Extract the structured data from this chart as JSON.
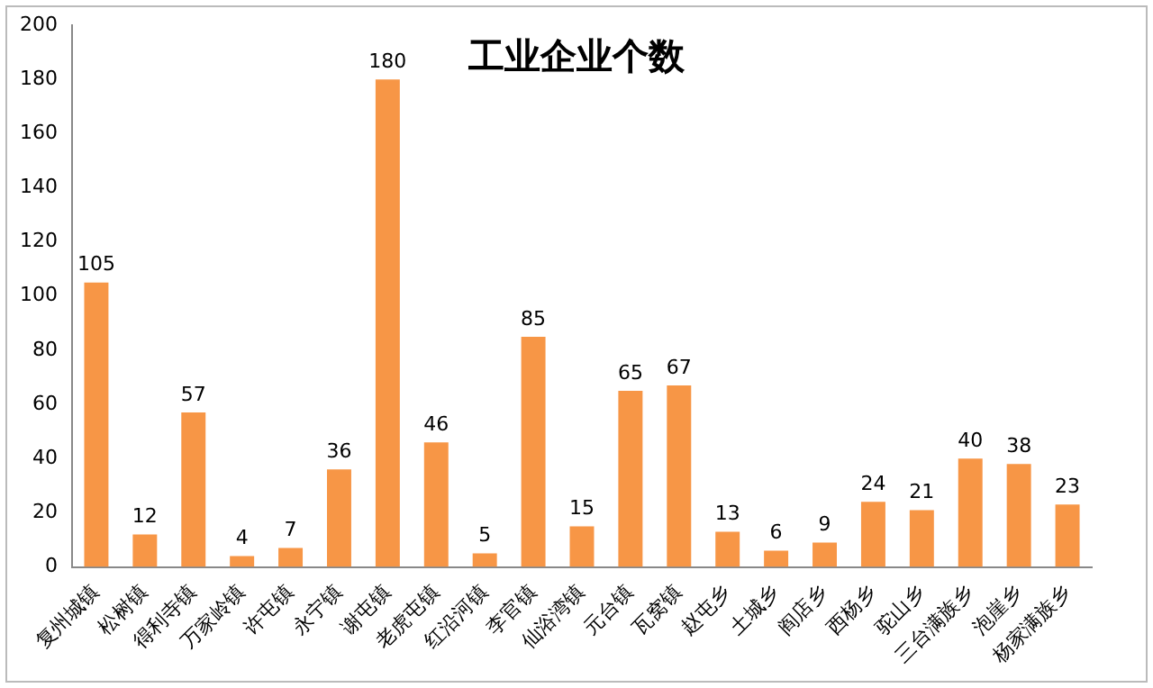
{
  "chart_data": {
    "type": "bar",
    "title": "工业企业个数",
    "categories": [
      "复州城镇",
      "松树镇",
      "得利寺镇",
      "万家岭镇",
      "许屯镇",
      "永宁镇",
      "谢屯镇",
      "老虎屯镇",
      "红沿河镇",
      "李官镇",
      "仙浴湾镇",
      "元台镇",
      "瓦窝镇",
      "赵屯乡",
      "土城乡",
      "阎店乡",
      "西杨乡",
      "驼山乡",
      "三台满族乡",
      "泡崖乡",
      "杨家满族乡"
    ],
    "values": [
      105,
      12,
      57,
      4,
      7,
      36,
      180,
      46,
      5,
      85,
      15,
      65,
      67,
      13,
      6,
      9,
      24,
      21,
      40,
      38,
      23
    ],
    "color": "#f79646",
    "ylim": [
      0,
      200
    ],
    "yticks": [
      0,
      20,
      40,
      60,
      80,
      100,
      120,
      140,
      160,
      180,
      200
    ],
    "grid": false,
    "legend": false,
    "data_labels": true
  }
}
